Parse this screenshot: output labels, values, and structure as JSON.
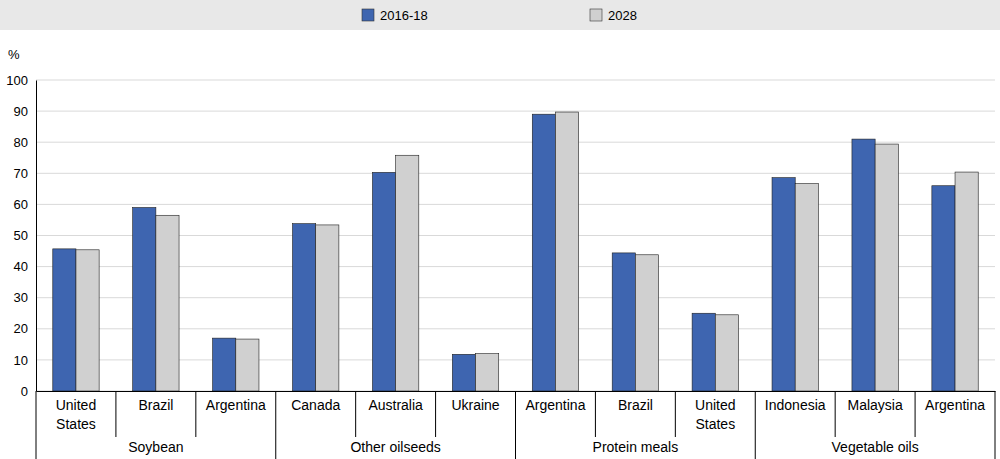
{
  "chart_data": {
    "type": "bar",
    "ylabel": "%",
    "categories": [
      "United States",
      "Brazil",
      "Argentina",
      "Canada",
      "Australia",
      "Ukraine",
      "Argentina",
      "Brazil",
      "United States",
      "Indonesia",
      "Malaysia",
      "Argentina"
    ],
    "category_groups": [
      "Soybean",
      "Soybean",
      "Soybean",
      "Other oilseeds",
      "Other oilseeds",
      "Other oilseeds",
      "Protein meals",
      "Protein meals",
      "Protein meals",
      "Vegetable oils",
      "Vegetable oils",
      "Vegetable oils"
    ],
    "series": [
      {
        "name": "2016-18",
        "color": "#3e65b0",
        "values": [
          45.7,
          59,
          17,
          53.8,
          70.3,
          11.8,
          89,
          44.4,
          25,
          68.6,
          81,
          66
        ]
      },
      {
        "name": "2028",
        "color": "#d0d0d0",
        "values": [
          45.4,
          56.5,
          16.7,
          53.4,
          75.8,
          12,
          89.7,
          43.8,
          24.5,
          66.7,
          79.4,
          70.4
        ]
      }
    ],
    "ylim": [
      0,
      100
    ],
    "yticks": [
      0,
      10,
      20,
      30,
      40,
      50,
      60,
      70,
      80,
      90,
      100
    ],
    "grid": true,
    "legend": "top"
  }
}
